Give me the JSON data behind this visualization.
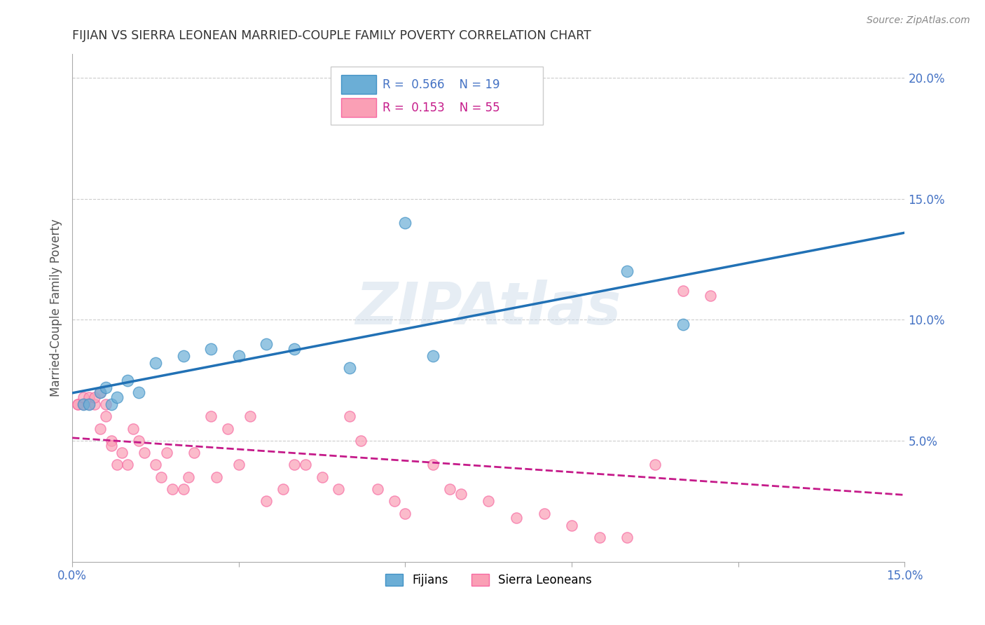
{
  "title": "FIJIAN VS SIERRA LEONEAN MARRIED-COUPLE FAMILY POVERTY CORRELATION CHART",
  "source": "Source: ZipAtlas.com",
  "ylabel": "Married-Couple Family Poverty",
  "xlim": [
    0.0,
    0.15
  ],
  "ylim": [
    0.0,
    0.21
  ],
  "yticks_right": [
    0.0,
    0.05,
    0.1,
    0.15,
    0.2
  ],
  "ytick_labels_right": [
    "",
    "5.0%",
    "10.0%",
    "15.0%",
    "20.0%"
  ],
  "fijian_color": "#6baed6",
  "fijian_edge": "#4292c6",
  "sierra_color": "#fa9fb5",
  "sierra_edge": "#f768a1",
  "legend_R_fijian": "0.566",
  "legend_N_fijian": "19",
  "legend_R_sierra": "0.153",
  "legend_N_sierra": "55",
  "trend_fijian_color": "#2171b5",
  "trend_sierra_color": "#c51b8a",
  "watermark": "ZIPAtlas",
  "fijian_x": [
    0.002,
    0.003,
    0.005,
    0.006,
    0.007,
    0.008,
    0.01,
    0.012,
    0.015,
    0.02,
    0.025,
    0.03,
    0.035,
    0.04,
    0.05,
    0.06,
    0.065,
    0.1,
    0.11
  ],
  "fijian_y": [
    0.065,
    0.065,
    0.07,
    0.072,
    0.065,
    0.068,
    0.075,
    0.07,
    0.082,
    0.085,
    0.088,
    0.085,
    0.09,
    0.088,
    0.08,
    0.14,
    0.085,
    0.12,
    0.098
  ],
  "sierra_x": [
    0.001,
    0.001,
    0.002,
    0.002,
    0.003,
    0.003,
    0.004,
    0.004,
    0.005,
    0.005,
    0.006,
    0.006,
    0.007,
    0.007,
    0.008,
    0.009,
    0.01,
    0.011,
    0.012,
    0.013,
    0.015,
    0.016,
    0.017,
    0.018,
    0.02,
    0.021,
    0.022,
    0.025,
    0.026,
    0.028,
    0.03,
    0.032,
    0.035,
    0.038,
    0.04,
    0.042,
    0.045,
    0.048,
    0.05,
    0.052,
    0.055,
    0.058,
    0.06,
    0.065,
    0.068,
    0.07,
    0.075,
    0.08,
    0.085,
    0.09,
    0.095,
    0.1,
    0.105,
    0.11,
    0.115
  ],
  "sierra_y": [
    0.065,
    0.065,
    0.065,
    0.068,
    0.068,
    0.065,
    0.065,
    0.068,
    0.07,
    0.055,
    0.065,
    0.06,
    0.05,
    0.048,
    0.04,
    0.045,
    0.04,
    0.055,
    0.05,
    0.045,
    0.04,
    0.035,
    0.045,
    0.03,
    0.03,
    0.035,
    0.045,
    0.06,
    0.035,
    0.055,
    0.04,
    0.06,
    0.025,
    0.03,
    0.04,
    0.04,
    0.035,
    0.03,
    0.06,
    0.05,
    0.03,
    0.025,
    0.02,
    0.04,
    0.03,
    0.028,
    0.025,
    0.018,
    0.02,
    0.015,
    0.01,
    0.01,
    0.04,
    0.112,
    0.11
  ],
  "background_color": "#ffffff",
  "grid_color": "#cccccc"
}
